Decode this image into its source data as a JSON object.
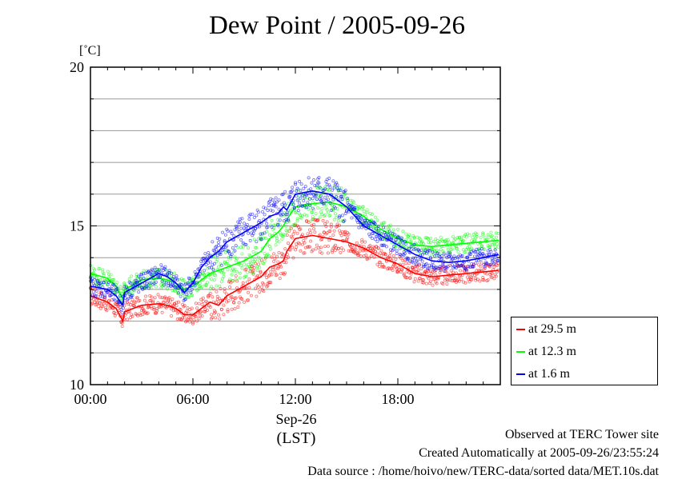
{
  "chart_data": {
    "type": "line",
    "title": "Dew Point / 2005-09-26",
    "ylabel": "[˚C]",
    "xlabel": "(LST)",
    "x_date_label": "Sep-26",
    "ylim": [
      10,
      20
    ],
    "xlim": [
      "00:00",
      "24:00"
    ],
    "y_ticks": [
      "10",
      "15",
      "20"
    ],
    "x_ticks": [
      "00:00",
      "06:00",
      "12:00",
      "18:00"
    ],
    "grid": true,
    "legend_position": "bottom-right, outside plot",
    "x_hours": [
      0,
      1,
      1.5,
      1.9,
      2,
      3,
      4,
      4.5,
      5,
      5.5,
      6,
      6.5,
      7,
      7.5,
      8,
      9,
      10,
      10.5,
      11,
      11.3,
      11.5,
      12,
      13,
      14,
      15,
      16,
      17,
      18,
      19,
      20,
      21,
      22,
      23,
      23.9
    ],
    "series": [
      {
        "name": "at 29.5 m",
        "color": "#ff0000",
        "values": [
          12.8,
          12.6,
          12.4,
          12.0,
          12.3,
          12.5,
          12.55,
          12.5,
          12.4,
          12.2,
          12.2,
          12.4,
          12.6,
          12.5,
          12.8,
          13.1,
          13.4,
          13.7,
          13.8,
          13.9,
          14.2,
          14.6,
          14.7,
          14.6,
          14.5,
          14.3,
          14.0,
          13.8,
          13.5,
          13.4,
          13.45,
          13.5,
          13.55,
          13.6
        ]
      },
      {
        "name": "at 12.3 m",
        "color": "#00ff00",
        "values": [
          13.5,
          13.35,
          13.1,
          12.7,
          13.0,
          13.3,
          13.35,
          13.3,
          13.2,
          13.0,
          13.1,
          13.3,
          13.5,
          13.6,
          13.7,
          13.9,
          14.2,
          14.6,
          14.8,
          15.0,
          15.2,
          15.6,
          15.7,
          15.75,
          15.6,
          15.3,
          14.9,
          14.6,
          14.4,
          14.35,
          14.4,
          14.45,
          14.5,
          14.55
        ]
      },
      {
        "name": "at 1.6 m",
        "color": "#0000ff",
        "values": [
          13.1,
          13.0,
          12.8,
          12.5,
          12.9,
          13.2,
          13.5,
          13.4,
          13.2,
          12.9,
          13.2,
          13.7,
          14.0,
          14.2,
          14.5,
          14.8,
          15.1,
          15.3,
          15.4,
          15.6,
          15.5,
          16.0,
          16.1,
          16.0,
          15.6,
          15.0,
          14.7,
          14.4,
          14.1,
          13.9,
          13.85,
          13.9,
          14.0,
          14.1
        ]
      }
    ]
  },
  "footer": {
    "line1": "Observed at TERC Tower site",
    "line2": "Created Automatically at 2005-09-26/23:55:24",
    "line3": "Data source : /home/hoivo/new/TERC-data/sorted data/MET.10s.dat"
  }
}
